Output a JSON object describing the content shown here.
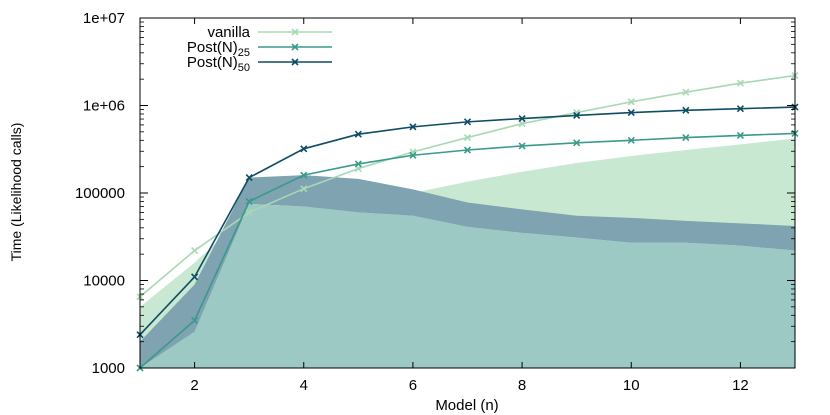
{
  "chart_data": {
    "type": "line",
    "xlabel": "Model (n)",
    "ylabel": "Time (Likelihood calls)",
    "xlim": [
      1,
      13
    ],
    "ylim": [
      1000,
      10000000
    ],
    "yscale": "log",
    "x_ticks": [
      2,
      4,
      6,
      8,
      10,
      12
    ],
    "y_ticks": [
      {
        "value": 1000,
        "label": "1000"
      },
      {
        "value": 10000,
        "label": "10000"
      },
      {
        "value": 100000,
        "label": "100000"
      },
      {
        "value": 1000000,
        "label": "1e+06"
      },
      {
        "value": 10000000,
        "label": "1e+07"
      }
    ],
    "grid": false,
    "legend_position": "top-left",
    "x": [
      1,
      2,
      3,
      4,
      5,
      6,
      7,
      8,
      9,
      10,
      11,
      12,
      13
    ],
    "series": [
      {
        "name": "vanilla",
        "sub": "",
        "color": "#a8d8b4",
        "marker": "x",
        "values": [
          6500,
          22000,
          60000,
          112000,
          190000,
          295000,
          430000,
          620000,
          830000,
          1100000,
          1420000,
          1800000,
          2200000
        ]
      },
      {
        "name": "Post(N)",
        "sub": "25",
        "color": "#3a9a8c",
        "marker": "x",
        "values": [
          1000,
          3500,
          80000,
          160000,
          215000,
          270000,
          310000,
          345000,
          375000,
          400000,
          430000,
          455000,
          480000
        ]
      },
      {
        "name": "Post(N)",
        "sub": "50",
        "color": "#0e4d64",
        "marker": "x",
        "values": [
          2400,
          11000,
          150000,
          320000,
          470000,
          570000,
          650000,
          710000,
          770000,
          830000,
          880000,
          920000,
          960000
        ]
      }
    ],
    "bands": [
      {
        "color": "#c9e8d2",
        "x": [
          1,
          2,
          3,
          4,
          5,
          6,
          7,
          8,
          9,
          10,
          11,
          12,
          13
        ],
        "upper": [
          5000,
          16000,
          60000,
          75000,
          85000,
          100000,
          135000,
          175000,
          220000,
          265000,
          310000,
          360000,
          420000
        ],
        "lower": [
          1000,
          1000,
          1000,
          1000,
          1000,
          1000,
          1000,
          1000,
          1000,
          1000,
          1000,
          1000,
          1000
        ]
      },
      {
        "color": "#7fa3b0",
        "x": [
          1,
          2,
          3,
          4,
          5,
          6,
          7,
          8,
          9,
          10,
          11,
          12,
          13
        ],
        "upper": [
          2000,
          9000,
          150000,
          160000,
          145000,
          110000,
          78000,
          65000,
          55000,
          52000,
          48000,
          45000,
          42000
        ],
        "lower": [
          1000,
          2600,
          75000,
          70000,
          60000,
          55000,
          41000,
          35000,
          31000,
          27000,
          27000,
          25000,
          22000
        ]
      },
      {
        "color": "#9cc9c4",
        "x": [
          1,
          2,
          3,
          4,
          5,
          6,
          7,
          8,
          9,
          10,
          11,
          12,
          13
        ],
        "upper": [
          1000,
          2600,
          75000,
          70000,
          60000,
          55000,
          41000,
          35000,
          31000,
          27000,
          27000,
          25000,
          22000
        ],
        "lower": [
          1000,
          1000,
          1000,
          1000,
          1000,
          1000,
          1000,
          1000,
          1000,
          1000,
          1000,
          1000,
          1000
        ]
      }
    ]
  }
}
